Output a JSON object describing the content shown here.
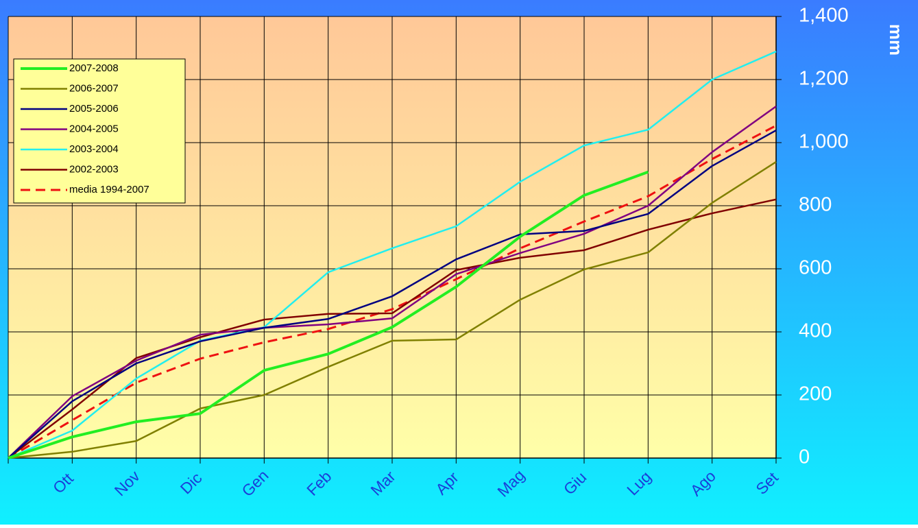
{
  "chart_data": {
    "type": "line",
    "y_label": "mm",
    "categories": [
      null,
      "Ott",
      "Nov",
      "Dic",
      "Gen",
      "Feb",
      "Mar",
      "Apr",
      "Mag",
      "Giu",
      "Lug",
      "Ago",
      "Set"
    ],
    "ylim": [
      0,
      1400
    ],
    "yticks": [
      0,
      200,
      400,
      600,
      800,
      {
        "value": 1000,
        "label": "1,000"
      },
      {
        "value": 1200,
        "label": "1,200"
      },
      {
        "value": 1400,
        "label": "1,400"
      }
    ],
    "grid": true,
    "legend": "upper left",
    "series": [
      {
        "name": "2007-2008",
        "color": "#22ee22",
        "width": 4,
        "values": [
          0,
          67,
          115,
          141,
          278,
          330,
          415,
          543,
          702,
          833,
          907,
          null,
          null
        ]
      },
      {
        "name": "2006-2007",
        "color": "#808000",
        "width": 2.5,
        "values": [
          0,
          20,
          54,
          157,
          200,
          289,
          372,
          376,
          502,
          598,
          652,
          809,
          939
        ]
      },
      {
        "name": "2005-2006",
        "color": "#000080",
        "width": 2.5,
        "values": [
          0,
          180,
          300,
          370,
          413,
          441,
          513,
          630,
          709,
          720,
          774,
          926,
          1039
        ]
      },
      {
        "name": "2004-2005",
        "color": "#800080",
        "width": 2.5,
        "values": [
          0,
          196,
          309,
          391,
          413,
          424,
          443,
          583,
          650,
          711,
          800,
          970,
          1115
        ]
      },
      {
        "name": "2003-2004",
        "color": "#22eeee",
        "width": 2.5,
        "values": [
          0,
          87,
          252,
          372,
          415,
          589,
          665,
          735,
          876,
          991,
          1041,
          1200,
          1289
        ]
      },
      {
        "name": "2002-2003",
        "color": "#800000",
        "width": 2.5,
        "values": [
          0,
          154,
          317,
          383,
          439,
          457,
          459,
          596,
          635,
          659,
          724,
          776,
          820
        ]
      },
      {
        "name": "media 1994-2007",
        "color": "#ee1111",
        "width": 3,
        "dashed": true,
        "values": [
          0,
          120,
          239,
          315,
          367,
          409,
          472,
          567,
          665,
          750,
          830,
          948,
          1054
        ]
      }
    ]
  }
}
